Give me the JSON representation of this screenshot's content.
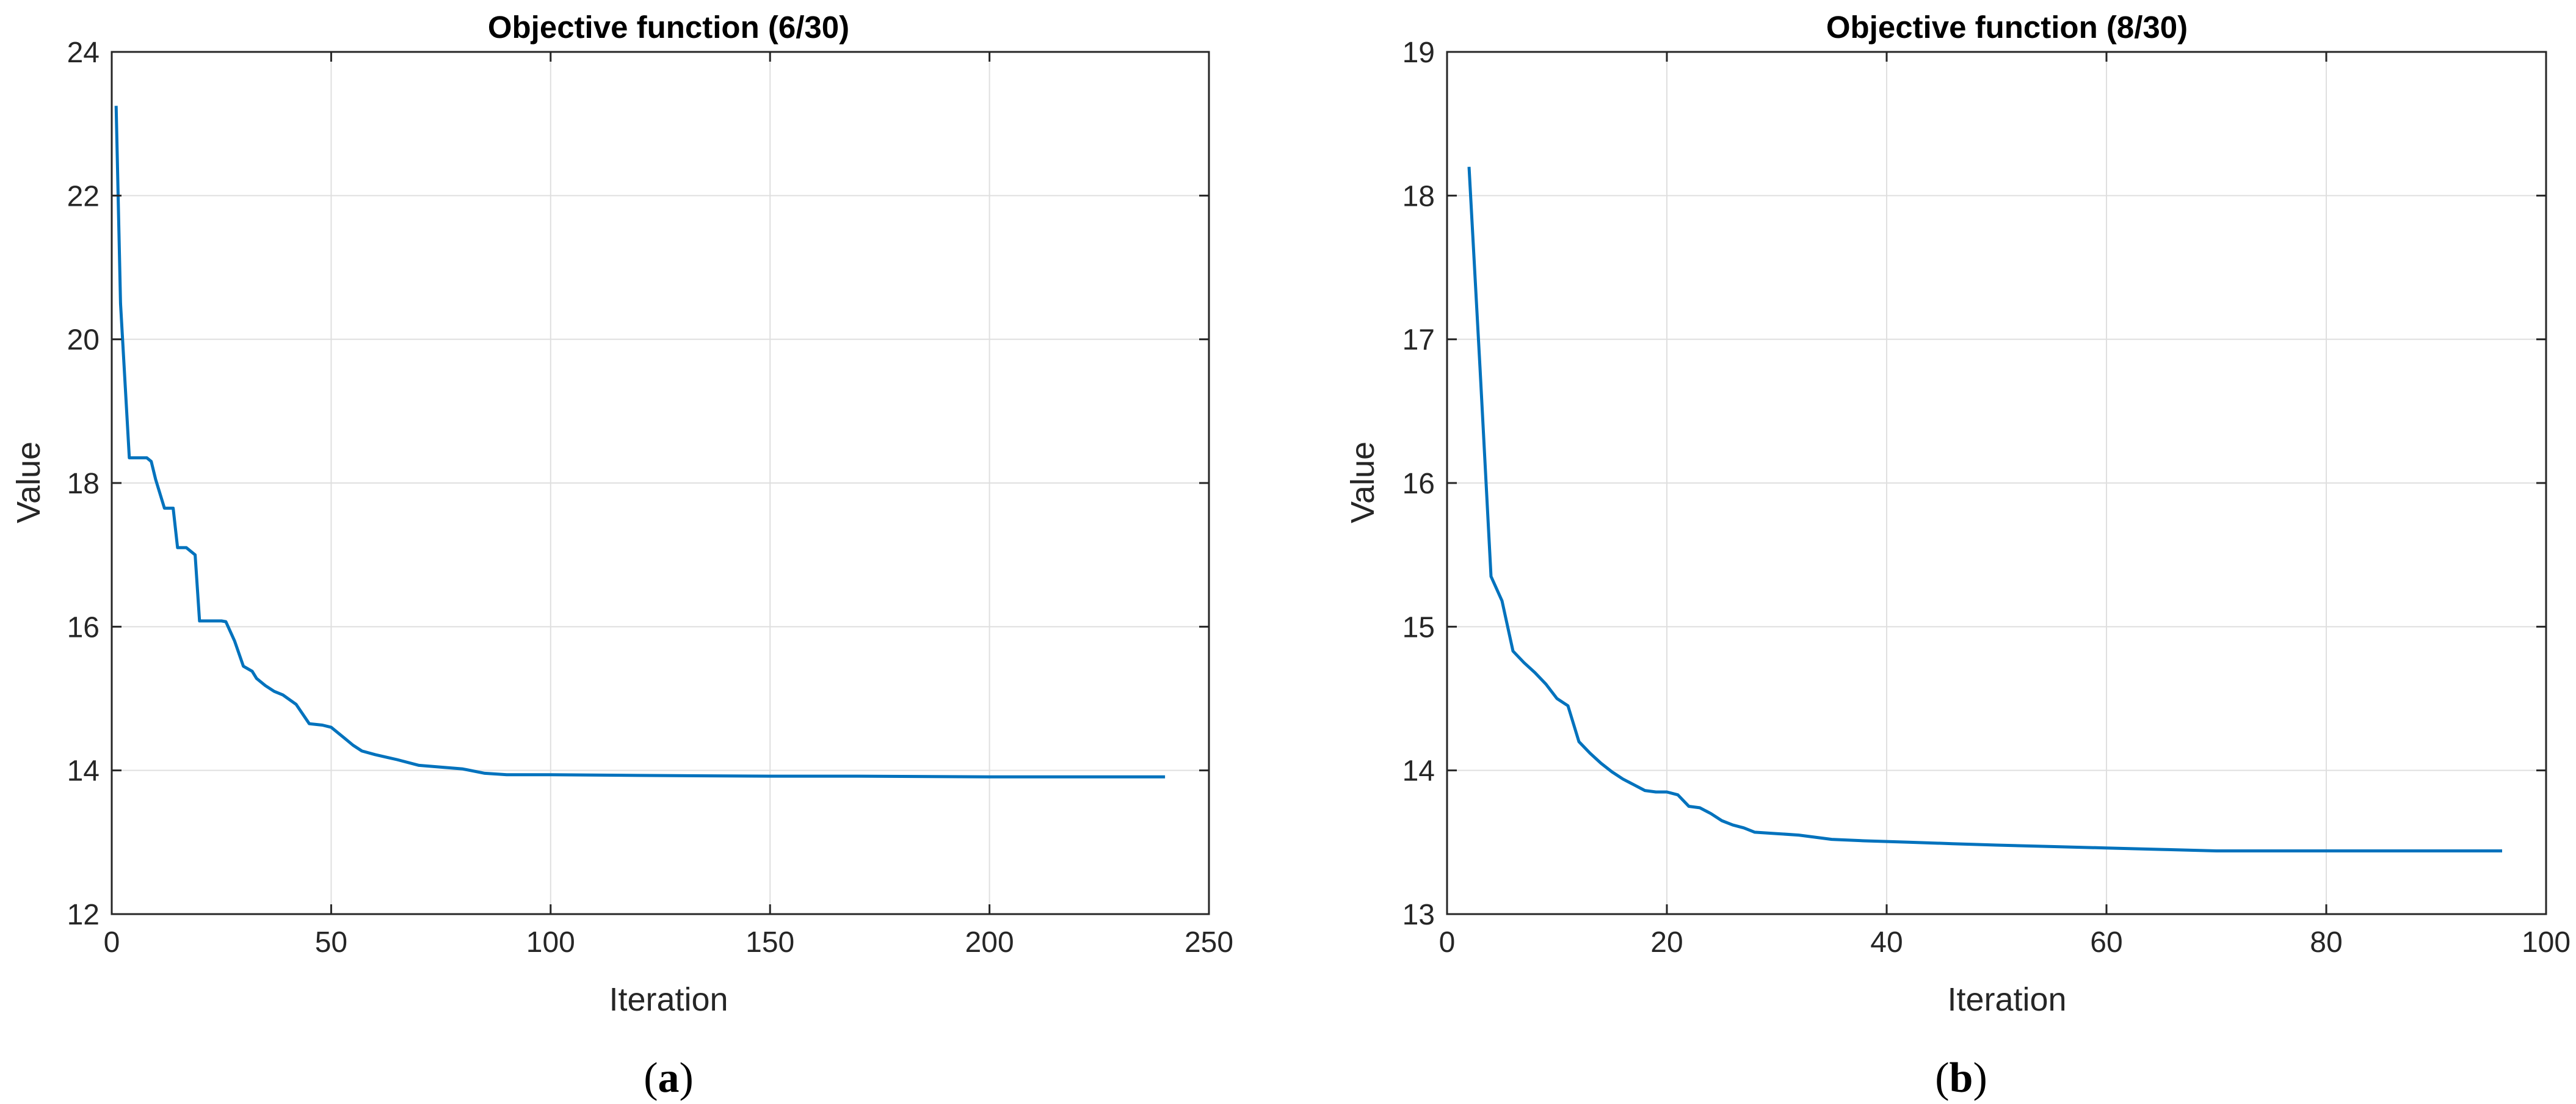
{
  "colors": {
    "line": "#0072BD",
    "grid": "#DFDFDF",
    "axis": "#262626",
    "background": "#FFFFFF"
  },
  "chart_data": [
    {
      "type": "line",
      "title": "Objective function (6/30)",
      "xlabel": "Iteration",
      "ylabel": "Value",
      "caption_open": "(",
      "caption_letter": "a",
      "caption_close": ")",
      "xlim": [
        0,
        250
      ],
      "ylim": [
        12,
        24
      ],
      "xticks": [
        0,
        50,
        100,
        150,
        200,
        250
      ],
      "yticks": [
        12,
        14,
        16,
        18,
        20,
        22,
        24
      ],
      "grid": true,
      "x": [
        1,
        2,
        4,
        8,
        9,
        10,
        12,
        14,
        15,
        17,
        18,
        19,
        20,
        21,
        22,
        23,
        24,
        25,
        26,
        28,
        30,
        32,
        33,
        35,
        37,
        39,
        42,
        45,
        48,
        50,
        53,
        55,
        57,
        60,
        65,
        70,
        80,
        85,
        90,
        100,
        120,
        150,
        170,
        200,
        240
      ],
      "series": [
        {
          "values": [
            23.25,
            20.5,
            18.35,
            18.35,
            18.3,
            18.05,
            17.65,
            17.65,
            17.1,
            17.1,
            17.05,
            17.0,
            16.08,
            16.08,
            16.08,
            16.08,
            16.08,
            16.08,
            16.07,
            15.8,
            15.45,
            15.38,
            15.28,
            15.18,
            15.1,
            15.05,
            14.92,
            14.65,
            14.63,
            14.6,
            14.45,
            14.35,
            14.27,
            14.22,
            14.15,
            14.07,
            14.02,
            13.96,
            13.94,
            13.94,
            13.93,
            13.92,
            13.92,
            13.91,
            13.91
          ]
        }
      ]
    },
    {
      "type": "line",
      "title": "Objective function (8/30)",
      "xlabel": "Iteration",
      "ylabel": "Value",
      "caption_open": "(",
      "caption_letter": "b",
      "caption_close": ")",
      "xlim": [
        0,
        100
      ],
      "ylim": [
        13,
        19
      ],
      "xticks": [
        0,
        20,
        40,
        60,
        80,
        100
      ],
      "yticks": [
        13,
        14,
        15,
        16,
        17,
        18,
        19
      ],
      "grid": true,
      "x": [
        2,
        3,
        4,
        5,
        6,
        7,
        8,
        9,
        10,
        11,
        12,
        13,
        14,
        15,
        16,
        17,
        18,
        19,
        20,
        21,
        22,
        23,
        24,
        25,
        26,
        27,
        28,
        30,
        32,
        35,
        38,
        42,
        46,
        50,
        55,
        60,
        65,
        70,
        80,
        90,
        96
      ],
      "series": [
        {
          "values": [
            18.2,
            16.8,
            15.35,
            15.18,
            14.83,
            14.75,
            14.68,
            14.6,
            14.5,
            14.45,
            14.2,
            14.12,
            14.05,
            13.99,
            13.94,
            13.9,
            13.86,
            13.85,
            13.85,
            13.83,
            13.75,
            13.74,
            13.7,
            13.65,
            13.62,
            13.6,
            13.57,
            13.56,
            13.55,
            13.52,
            13.51,
            13.5,
            13.49,
            13.48,
            13.47,
            13.46,
            13.45,
            13.44,
            13.44,
            13.44,
            13.44
          ]
        }
      ]
    }
  ]
}
